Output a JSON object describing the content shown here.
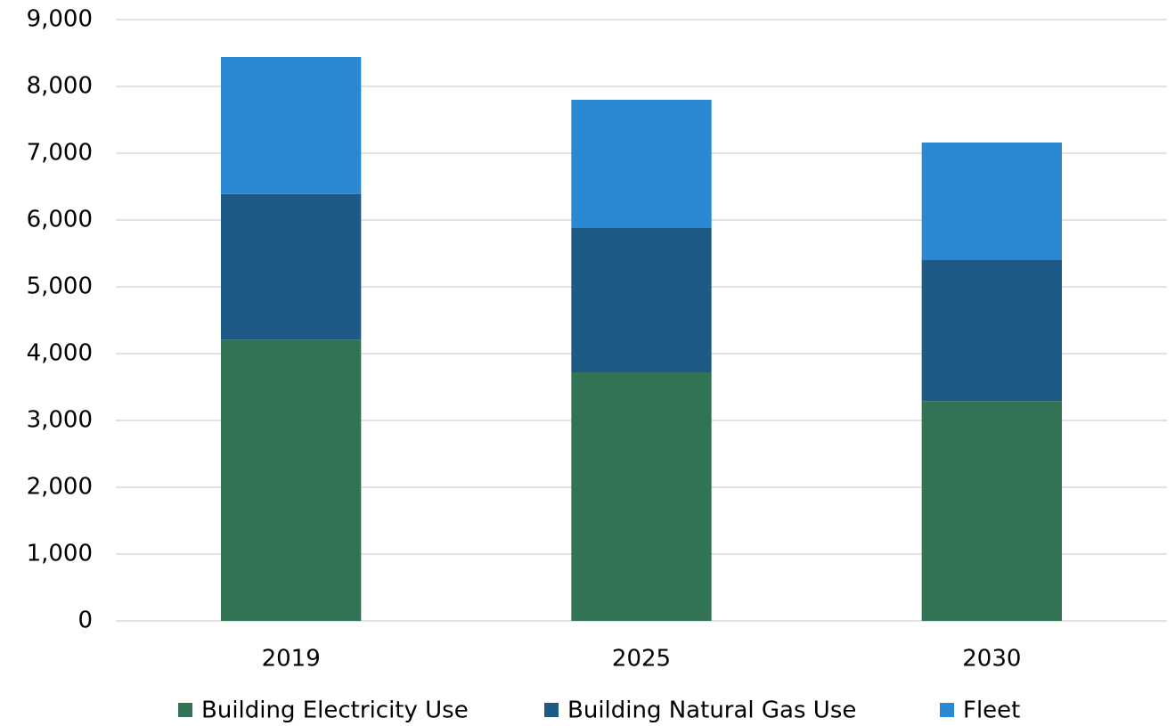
{
  "chart_data": {
    "type": "stacked_bar",
    "categories": [
      "2019",
      "2025",
      "2030"
    ],
    "series": [
      {
        "name": "Building Electricity Use",
        "color": "#317354",
        "values": [
          4210,
          3720,
          3290
        ]
      },
      {
        "name": "Building Natural Gas Use",
        "color": "#1f5a87",
        "values": [
          2180,
          2160,
          2110
        ]
      },
      {
        "name": "Fleet",
        "color": "#2b88d3",
        "values": [
          2050,
          1920,
          1760
        ]
      }
    ],
    "ylim": [
      0,
      9000
    ],
    "yticks": [
      0,
      {
        "value": 1000,
        "label": "1,000"
      },
      {
        "value": 2000,
        "label": "2,000"
      },
      {
        "value": 3000,
        "label": "3,000"
      },
      {
        "value": 4000,
        "label": "4,000"
      },
      {
        "value": 5000,
        "label": "5,000"
      },
      {
        "value": 6000,
        "label": "6,000"
      },
      {
        "value": 7000,
        "label": "7,000"
      },
      {
        "value": 8000,
        "label": "8,000"
      },
      {
        "value": 9000,
        "label": "9,000"
      }
    ],
    "grid": true,
    "legend": "bottom"
  }
}
